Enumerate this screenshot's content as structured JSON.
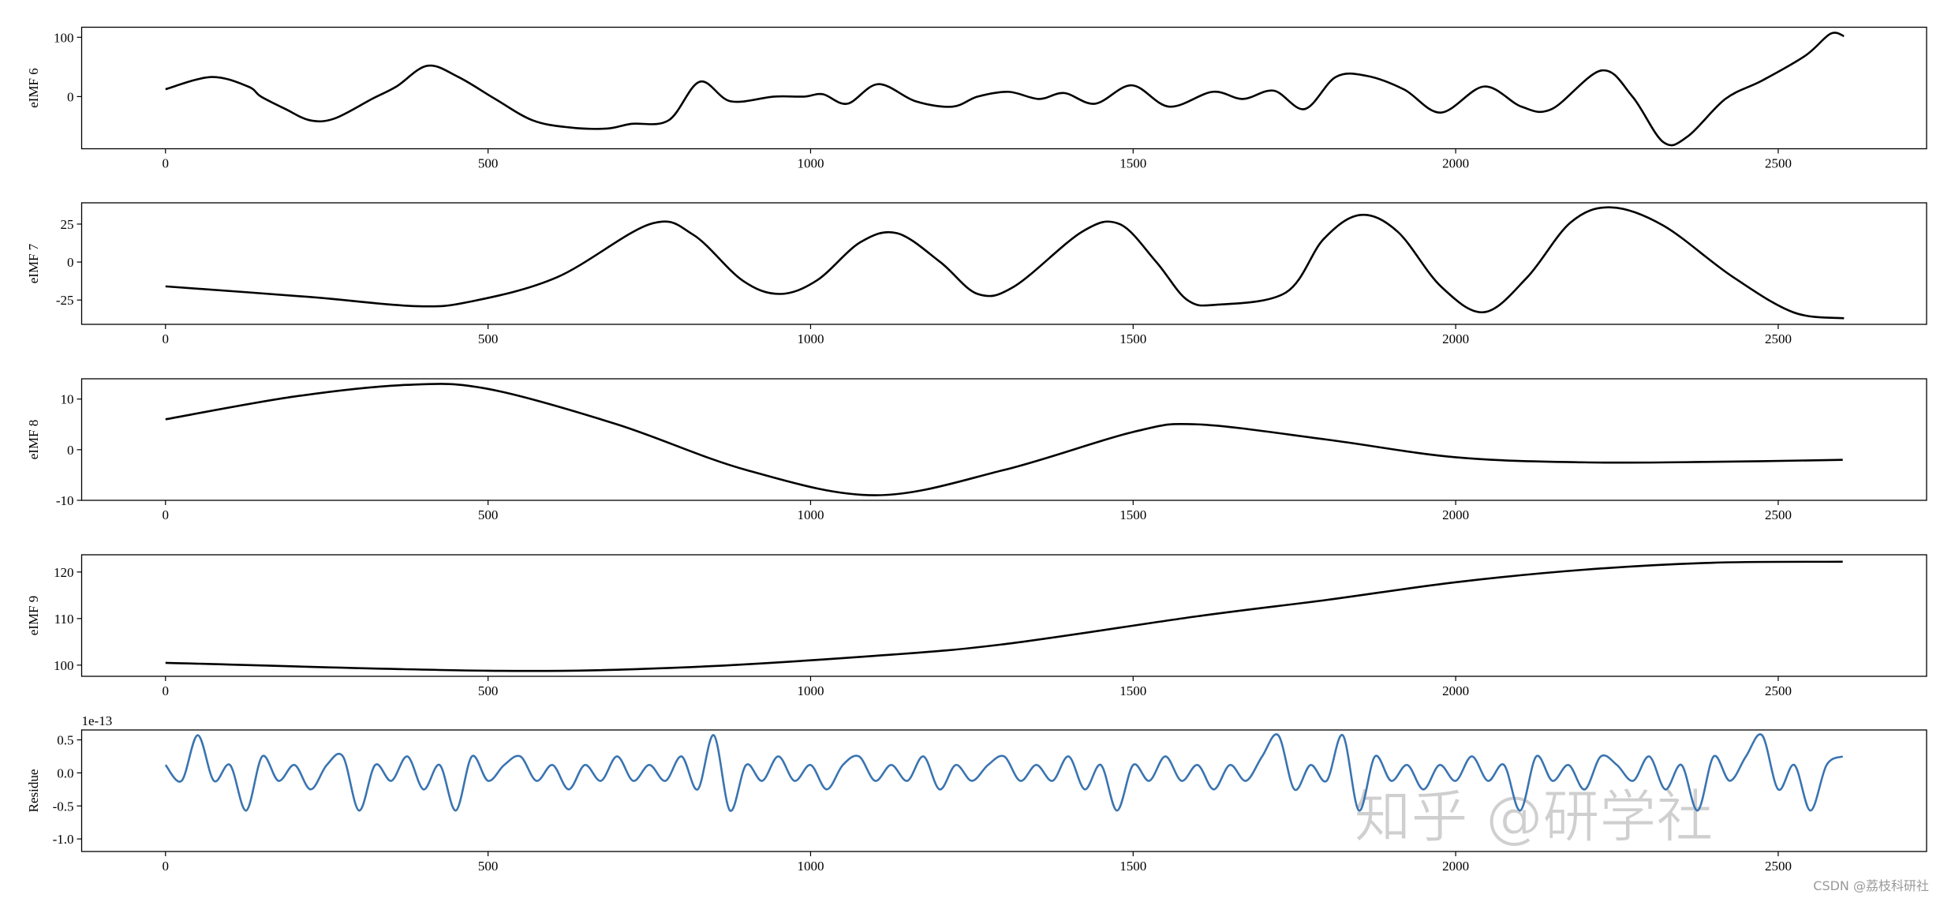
{
  "chart_data": [
    {
      "type": "line",
      "ylabel": "eIMF 6",
      "color": "#000000",
      "x": [
        0,
        71,
        128,
        148,
        186,
        224,
        262,
        320,
        358,
        406,
        454,
        511,
        569,
        626,
        684,
        722,
        780,
        828,
        876,
        943,
        990,
        1019,
        1057,
        1105,
        1163,
        1220,
        1259,
        1307,
        1354,
        1393,
        1441,
        1498,
        1556,
        1623,
        1670,
        1718,
        1766,
        1814,
        1862,
        1920,
        1977,
        2044,
        2102,
        2149,
        2226,
        2274,
        2322,
        2360,
        2418,
        2475,
        2542,
        2581,
        2602
      ],
      "values": [
        12.5,
        33,
        17,
        0,
        -21,
        -40,
        -37,
        -4,
        17,
        52,
        33,
        -4,
        -40,
        -52,
        -54,
        -46,
        -40,
        25,
        -8,
        0,
        0,
        4,
        -12,
        21,
        -8,
        -17,
        0,
        8,
        -4,
        6,
        -12,
        19,
        -17,
        8,
        -4,
        10,
        -21,
        33,
        35,
        12,
        -27,
        17,
        -17,
        -21,
        44,
        0,
        -77,
        -67,
        -4,
        27,
        69,
        106,
        102
      ],
      "xlim": [
        -130,
        2730
      ],
      "xticks": [
        0,
        500,
        1000,
        1500,
        2000,
        2500
      ],
      "ylim": [
        -88,
        117
      ],
      "yticks": [
        0,
        100
      ]
    },
    {
      "type": "line",
      "ylabel": "eIMF 7",
      "color": "#000000",
      "x": [
        0,
        224,
        387,
        473,
        607,
        751,
        818,
        894,
        952,
        1010,
        1077,
        1134,
        1201,
        1259,
        1316,
        1421,
        1479,
        1536,
        1584,
        1632,
        1737,
        1795,
        1852,
        1910,
        1977,
        2044,
        2111,
        2178,
        2241,
        2322,
        2427,
        2523,
        2602
      ],
      "values": [
        -16,
        -23,
        -29,
        -26,
        -10,
        25,
        18,
        -12,
        -21,
        -12,
        13,
        19,
        0,
        -21,
        -16,
        20,
        25,
        0,
        -25,
        -28,
        -20,
        15,
        31,
        20,
        -16,
        -33,
        -10,
        26,
        36,
        24,
        -9,
        -33,
        -37
      ],
      "xlim": [
        -130,
        2730
      ],
      "xticks": [
        0,
        500,
        1000,
        1500,
        2000,
        2500
      ],
      "ylim": [
        -41,
        39
      ],
      "yticks": [
        -25,
        0,
        25
      ]
    },
    {
      "type": "line",
      "ylabel": "eIMF 8",
      "color": "#000000",
      "x": [
        0,
        200,
        375,
        500,
        700,
        900,
        1100,
        1300,
        1500,
        1600,
        1800,
        2000,
        2200,
        2400,
        2600
      ],
      "values": [
        6,
        10.5,
        12.8,
        12,
        5,
        -4,
        -9,
        -4,
        3.5,
        5,
        2,
        -1.5,
        -2.5,
        -2.4,
        -2
      ],
      "xlim": [
        -130,
        2730
      ],
      "xticks": [
        0,
        500,
        1000,
        1500,
        2000,
        2500
      ],
      "ylim": [
        -10,
        14
      ],
      "yticks": [
        -10,
        0,
        10
      ]
    },
    {
      "type": "line",
      "ylabel": "eIMF 9",
      "color": "#000000",
      "x": [
        0,
        500,
        800,
        1100,
        1300,
        1600,
        1800,
        2000,
        2200,
        2400,
        2600
      ],
      "values": [
        100.5,
        98.8,
        99.5,
        102,
        104.5,
        110.5,
        114,
        117.8,
        120.5,
        122,
        122.2
      ],
      "xlim": [
        -130,
        2730
      ],
      "xticks": [
        0,
        500,
        1000,
        1500,
        2000,
        2500
      ],
      "ylim": [
        97.6,
        123.7
      ],
      "yticks": [
        100,
        110,
        120
      ]
    },
    {
      "type": "line",
      "ylabel": "Residue",
      "offset_label": "1e-13",
      "color": "#3a74b0",
      "x": [
        0,
        25,
        50,
        75,
        100,
        125,
        150,
        175,
        200,
        225,
        250,
        275,
        300,
        325,
        350,
        375,
        400,
        425,
        450,
        475,
        500,
        525,
        550,
        575,
        600,
        625,
        650,
        675,
        700,
        725,
        750,
        775,
        800,
        825,
        850,
        875,
        900,
        925,
        950,
        975,
        1000,
        1025,
        1050,
        1075,
        1100,
        1125,
        1150,
        1175,
        1200,
        1225,
        1250,
        1275,
        1300,
        1325,
        1350,
        1375,
        1400,
        1425,
        1450,
        1475,
        1500,
        1525,
        1550,
        1575,
        1600,
        1625,
        1650,
        1675,
        1700,
        1725,
        1750,
        1775,
        1800,
        1825,
        1850,
        1875,
        1900,
        1925,
        1950,
        1975,
        2000,
        2025,
        2050,
        2075,
        2100,
        2125,
        2150,
        2175,
        2200,
        2225,
        2250,
        2275,
        2300,
        2325,
        2350,
        2375,
        2400,
        2425,
        2450,
        2475,
        2500,
        2525,
        2550,
        2575,
        2600
      ],
      "values": [
        0.12,
        -0.12,
        0.57,
        -0.12,
        0.12,
        -0.57,
        0.25,
        -0.12,
        0.12,
        -0.25,
        0.12,
        0.25,
        -0.57,
        0.12,
        -0.12,
        0.25,
        -0.25,
        0.12,
        -0.57,
        0.25,
        -0.12,
        0.12,
        0.25,
        -0.12,
        0.12,
        -0.25,
        0.12,
        -0.12,
        0.25,
        -0.12,
        0.12,
        -0.12,
        0.25,
        -0.25,
        0.57,
        -0.57,
        0.12,
        -0.12,
        0.25,
        -0.12,
        0.12,
        -0.25,
        0.12,
        0.25,
        -0.12,
        0.12,
        -0.12,
        0.25,
        -0.25,
        0.12,
        -0.12,
        0.12,
        0.25,
        -0.12,
        0.12,
        -0.12,
        0.25,
        -0.25,
        0.12,
        -0.57,
        0.12,
        -0.12,
        0.25,
        -0.12,
        0.12,
        -0.25,
        0.12,
        -0.12,
        0.25,
        0.57,
        -0.25,
        0.12,
        -0.12,
        0.57,
        -0.57,
        0.25,
        -0.12,
        0.12,
        -0.25,
        0.12,
        -0.12,
        0.25,
        -0.12,
        0.12,
        -0.57,
        0.25,
        -0.12,
        0.12,
        -0.25,
        0.25,
        0.12,
        -0.12,
        0.25,
        -0.25,
        0.12,
        -0.57,
        0.25,
        -0.12,
        0.25,
        0.57,
        -0.25,
        0.12,
        -0.57,
        0.12,
        0.25
      ],
      "xlim": [
        -130,
        2730
      ],
      "xticks": [
        0,
        500,
        1000,
        1500,
        2000,
        2500
      ],
      "ylim": [
        -1.19,
        0.65
      ],
      "yticks": [
        {
          "value": -1,
          "label": "-1.0"
        },
        -0.5,
        {
          "value": 0,
          "label": "0.0"
        },
        0.5
      ]
    }
  ],
  "watermarks": [
    "知乎 @研学社",
    "CSDN @荔枝科研社"
  ]
}
